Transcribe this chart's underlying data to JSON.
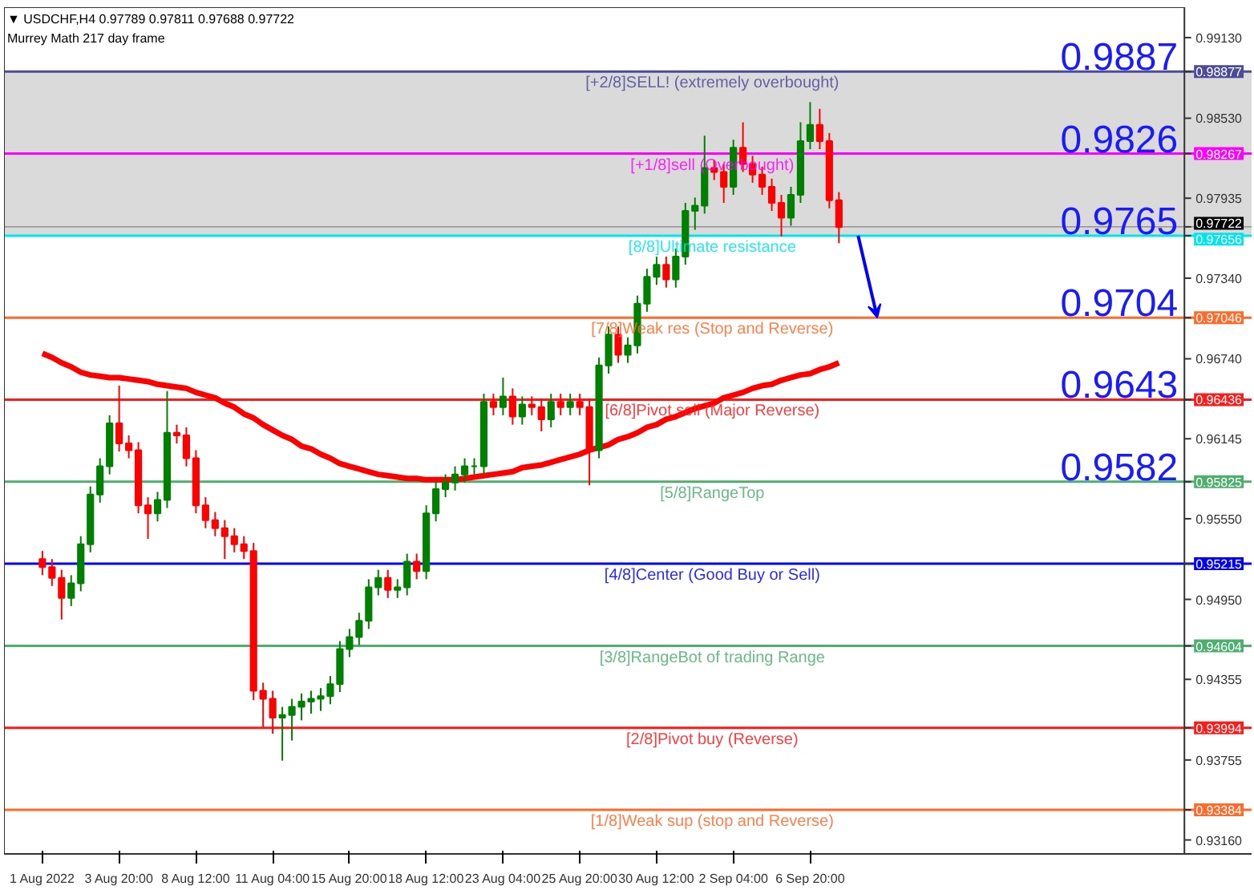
{
  "chart_data": {
    "type": "candlestick",
    "title": "▼ USDCHF,H4  0.97789 0.97811 0.97688 0.97722",
    "subtitle": "Murrey Math 217 day frame",
    "categories": [
      "1 Aug 2022",
      null,
      null,
      null,
      null,
      null,
      null,
      null,
      "3 Aug 20:00",
      null,
      null,
      null,
      null,
      null,
      null,
      null,
      "8 Aug 12:00",
      null,
      null,
      null,
      null,
      null,
      null,
      null,
      "11 Aug 04:00",
      null,
      null,
      null,
      null,
      null,
      null,
      null,
      "15 Aug 20:00",
      null,
      null,
      null,
      null,
      null,
      null,
      null,
      "18 Aug 12:00",
      null,
      null,
      null,
      null,
      null,
      null,
      null,
      "23 Aug 04:00",
      null,
      null,
      null,
      null,
      null,
      null,
      null,
      "25 Aug 20:00",
      null,
      null,
      null,
      null,
      null,
      null,
      null,
      "30 Aug 12:00",
      null,
      null,
      null,
      null,
      null,
      null,
      null,
      "2 Sep 04:00",
      null,
      null,
      null,
      null,
      null,
      null,
      null,
      "6 Sep 20:00",
      null,
      null,
      null
    ],
    "ohlc": [
      [
        0.9525,
        0.9531,
        0.9513,
        0.9519
      ],
      [
        0.9519,
        0.9525,
        0.9505,
        0.9511
      ],
      [
        0.9511,
        0.9517,
        0.948,
        0.9496
      ],
      [
        0.9496,
        0.9513,
        0.949,
        0.9507
      ],
      [
        0.9507,
        0.9542,
        0.9501,
        0.9536
      ],
      [
        0.9536,
        0.9579,
        0.953,
        0.9573
      ],
      [
        0.9573,
        0.96,
        0.9567,
        0.9594
      ],
      [
        0.9594,
        0.9632,
        0.9588,
        0.9626
      ],
      [
        0.9626,
        0.9654,
        0.9605,
        0.9611
      ],
      [
        0.9611,
        0.9617,
        0.96,
        0.9606
      ],
      [
        0.9606,
        0.9612,
        0.9559,
        0.9565
      ],
      [
        0.9565,
        0.9571,
        0.954,
        0.9559
      ],
      [
        0.9559,
        0.9575,
        0.9553,
        0.9569
      ],
      [
        0.9569,
        0.965,
        0.9563,
        0.9619
      ],
      [
        0.9619,
        0.9625,
        0.9611,
        0.9617
      ],
      [
        0.9617,
        0.9623,
        0.9594,
        0.96
      ],
      [
        0.96,
        0.9606,
        0.9559,
        0.9565
      ],
      [
        0.9565,
        0.9571,
        0.9548,
        0.9554
      ],
      [
        0.9554,
        0.956,
        0.9542,
        0.9548
      ],
      [
        0.9548,
        0.9554,
        0.9525,
        0.9542
      ],
      [
        0.9542,
        0.9548,
        0.953,
        0.9536
      ],
      [
        0.9536,
        0.9542,
        0.9525,
        0.9531
      ],
      [
        0.9531,
        0.9537,
        0.942,
        0.9427
      ],
      [
        0.9427,
        0.9433,
        0.94,
        0.9421
      ],
      [
        0.9421,
        0.9427,
        0.9395,
        0.9407
      ],
      [
        0.9407,
        0.9415,
        0.9375,
        0.9409
      ],
      [
        0.9409,
        0.9421,
        0.939,
        0.9415
      ],
      [
        0.9415,
        0.9425,
        0.9405,
        0.9419
      ],
      [
        0.9419,
        0.9427,
        0.941,
        0.9421
      ],
      [
        0.9421,
        0.9429,
        0.9412,
        0.9423
      ],
      [
        0.9423,
        0.9438,
        0.9417,
        0.9432
      ],
      [
        0.9432,
        0.9464,
        0.9426,
        0.9458
      ],
      [
        0.9458,
        0.9473,
        0.9452,
        0.9467
      ],
      [
        0.9467,
        0.9485,
        0.9461,
        0.9479
      ],
      [
        0.9479,
        0.951,
        0.9473,
        0.9504
      ],
      [
        0.9504,
        0.9517,
        0.9498,
        0.9511
      ],
      [
        0.9511,
        0.9517,
        0.9496,
        0.9502
      ],
      [
        0.9502,
        0.951,
        0.9496,
        0.9504
      ],
      [
        0.9504,
        0.9529,
        0.9498,
        0.9523
      ],
      [
        0.9523,
        0.9529,
        0.951,
        0.9516
      ],
      [
        0.9516,
        0.9565,
        0.951,
        0.9559
      ],
      [
        0.9559,
        0.9583,
        0.9553,
        0.9577
      ],
      [
        0.9577,
        0.9588,
        0.9571,
        0.9582
      ],
      [
        0.9582,
        0.9594,
        0.9576,
        0.9588
      ],
      [
        0.9588,
        0.96,
        0.9582,
        0.9594
      ],
      [
        0.9594,
        0.96,
        0.9588,
        0.9594
      ],
      [
        0.9594,
        0.9648,
        0.9588,
        0.9642
      ],
      [
        0.9642,
        0.9648,
        0.9632,
        0.9638
      ],
      [
        0.9638,
        0.966,
        0.9632,
        0.9646
      ],
      [
        0.9646,
        0.9652,
        0.9625,
        0.9631
      ],
      [
        0.9631,
        0.9646,
        0.9625,
        0.964
      ],
      [
        0.964,
        0.9646,
        0.9632,
        0.9638
      ],
      [
        0.9638,
        0.9644,
        0.962,
        0.9629
      ],
      [
        0.9629,
        0.9648,
        0.9623,
        0.9642
      ],
      [
        0.9642,
        0.9648,
        0.9632,
        0.9638
      ],
      [
        0.9638,
        0.9648,
        0.9632,
        0.9642
      ],
      [
        0.9642,
        0.9648,
        0.9632,
        0.9638
      ],
      [
        0.9638,
        0.9644,
        0.958,
        0.9606
      ],
      [
        0.9606,
        0.9675,
        0.96,
        0.9669
      ],
      [
        0.9669,
        0.9698,
        0.9663,
        0.9692
      ],
      [
        0.9692,
        0.9698,
        0.9671,
        0.9677
      ],
      [
        0.9677,
        0.969,
        0.9671,
        0.9684
      ],
      [
        0.9684,
        0.9721,
        0.9678,
        0.9715
      ],
      [
        0.9715,
        0.9741,
        0.9709,
        0.9735
      ],
      [
        0.9735,
        0.975,
        0.9729,
        0.9744
      ],
      [
        0.9744,
        0.975,
        0.9727,
        0.9733
      ],
      [
        0.9733,
        0.9756,
        0.9727,
        0.975
      ],
      [
        0.975,
        0.979,
        0.9744,
        0.9784
      ],
      [
        0.9784,
        0.9794,
        0.977,
        0.9788
      ],
      [
        0.9788,
        0.984,
        0.9782,
        0.9816
      ],
      [
        0.9816,
        0.9822,
        0.9807,
        0.9813
      ],
      [
        0.9813,
        0.9819,
        0.979,
        0.9802
      ],
      [
        0.9802,
        0.9837,
        0.9796,
        0.9831
      ],
      [
        0.9831,
        0.985,
        0.9813,
        0.9819
      ],
      [
        0.9819,
        0.9825,
        0.9805,
        0.9811
      ],
      [
        0.9811,
        0.9817,
        0.9796,
        0.9802
      ],
      [
        0.9802,
        0.9808,
        0.9784,
        0.979
      ],
      [
        0.979,
        0.9796,
        0.9765,
        0.9779
      ],
      [
        0.9779,
        0.9802,
        0.9773,
        0.9796
      ],
      [
        0.9796,
        0.985,
        0.979,
        0.9836
      ],
      [
        0.9836,
        0.9865,
        0.983,
        0.9848
      ],
      [
        0.9848,
        0.986,
        0.983,
        0.9836
      ],
      [
        0.9836,
        0.9842,
        0.9786,
        0.9792
      ],
      [
        0.9792,
        0.9798,
        0.976,
        0.9772
      ]
    ],
    "series": [
      {
        "type": "line",
        "color": "#ff0000",
        "values": [
          0.9678,
          0.9675,
          0.9671,
          0.9668,
          0.9664,
          0.9662,
          0.9661,
          0.966,
          0.966,
          0.9659,
          0.9658,
          0.9657,
          0.9655,
          0.9654,
          0.9653,
          0.9652,
          0.9649,
          0.9647,
          0.9645,
          0.9641,
          0.9638,
          0.9633,
          0.963,
          0.9625,
          0.9621,
          0.9617,
          0.9614,
          0.9609,
          0.9607,
          0.9603,
          0.96,
          0.9596,
          0.9594,
          0.9592,
          0.959,
          0.9588,
          0.9587,
          0.9586,
          0.9585,
          0.9585,
          0.9584,
          0.9584,
          0.9584,
          0.9584,
          0.9585,
          0.9586,
          0.9587,
          0.9588,
          0.9589,
          0.959,
          0.9593,
          0.9594,
          0.9595,
          0.9597,
          0.9599,
          0.9601,
          0.9603,
          0.9606,
          0.9608,
          0.961,
          0.9614,
          0.9616,
          0.9619,
          0.9623,
          0.9625,
          0.9629,
          0.9631,
          0.9634,
          0.9637,
          0.9639,
          0.9641,
          0.9645,
          0.9647,
          0.9649,
          0.9652,
          0.9654,
          0.9655,
          0.9658,
          0.966,
          0.9662,
          0.9663,
          0.9666,
          0.9668,
          0.9671
        ]
      }
    ],
    "ylim": [
      0.93056,
      0.99356
    ],
    "yticks": [
      {
        "value": 0.9913,
        "label": "0.99130"
      },
      {
        "value": 0.98877,
        "label": "0.98877"
      },
      {
        "value": 0.9853,
        "label": "0.98530"
      },
      {
        "value": 0.98267,
        "label": "0.98267"
      },
      {
        "value": 0.97935,
        "label": "0.97935"
      },
      {
        "value": 0.97722,
        "label": "0.97722"
      },
      {
        "value": 0.97656,
        "label": "0.97656"
      },
      {
        "value": 0.9734,
        "label": "0.97340"
      },
      {
        "value": 0.97046,
        "label": "0.97046"
      },
      {
        "value": 0.9674,
        "label": "0.96740"
      },
      {
        "value": 0.96436,
        "label": "0.96436"
      },
      {
        "value": 0.96145,
        "label": "0.96145"
      },
      {
        "value": 0.95825,
        "label": "0.95825"
      },
      {
        "value": 0.9555,
        "label": "0.95550"
      },
      {
        "value": 0.95215,
        "label": "0.95215"
      },
      {
        "value": 0.9495,
        "label": "0.94950"
      },
      {
        "value": 0.94604,
        "label": "0.94604"
      },
      {
        "value": 0.94355,
        "label": "0.94355"
      },
      {
        "value": 0.93994,
        "label": "0.93994"
      },
      {
        "value": 0.93755,
        "label": "0.93755"
      },
      {
        "value": 0.93384,
        "label": "0.93384"
      },
      {
        "value": 0.9316,
        "label": "0.93160"
      }
    ],
    "bands": [
      {
        "axis": "y",
        "from": 0.97656,
        "to": 0.98877,
        "color": "#d3d3d3"
      }
    ],
    "ref_lines": [
      {
        "axis": "y",
        "value": 0.98877,
        "label": "[+2/8]SELL! (extremely overbought)",
        "color": "#4b4b9a"
      },
      {
        "axis": "y",
        "value": 0.98267,
        "label": "[+1/8]sell (Overbought)",
        "color": "#ff00ff"
      },
      {
        "axis": "y",
        "value": 0.97722,
        "color": "#000000"
      },
      {
        "axis": "y",
        "value": 0.97656,
        "label": "[8/8]Ultimate resistance",
        "color": "#00e5ee"
      },
      {
        "axis": "y",
        "value": 0.97046,
        "label": "[7/8]Weak res (Stop and Reverse)",
        "color": "#ff6a2a"
      },
      {
        "axis": "y",
        "value": 0.96436,
        "label": "[6/8]Pivot sell (Major Reverse)",
        "color": "#ff1a1a"
      },
      {
        "axis": "y",
        "value": 0.95825,
        "label": "[5/8]RangeTop",
        "color": "#4caf6e"
      },
      {
        "axis": "y",
        "value": 0.95215,
        "label": "[4/8]Center (Good Buy or Sell)",
        "color": "#0000ff"
      },
      {
        "axis": "y",
        "value": 0.94604,
        "label": "[3/8]RangeBot of trading Range",
        "color": "#4caf6e"
      },
      {
        "axis": "y",
        "value": 0.93994,
        "label": "[2/8]Pivot buy (Reverse)",
        "color": "#ff1a1a"
      },
      {
        "axis": "y",
        "value": 0.93384,
        "label": "[1/8]Weak sup (stop and Reverse)",
        "color": "#ff6a2a"
      }
    ],
    "annotations": [
      {
        "text": "0.9887",
        "y": 0.98877
      },
      {
        "text": "0.9826",
        "y": 0.98267
      },
      {
        "text": "0.9765",
        "y": 0.97656
      },
      {
        "text": "0.9704",
        "y": 0.97046
      },
      {
        "text": "0.9643",
        "y": 0.96436
      },
      {
        "text": "0.9582",
        "y": 0.95825
      }
    ]
  }
}
